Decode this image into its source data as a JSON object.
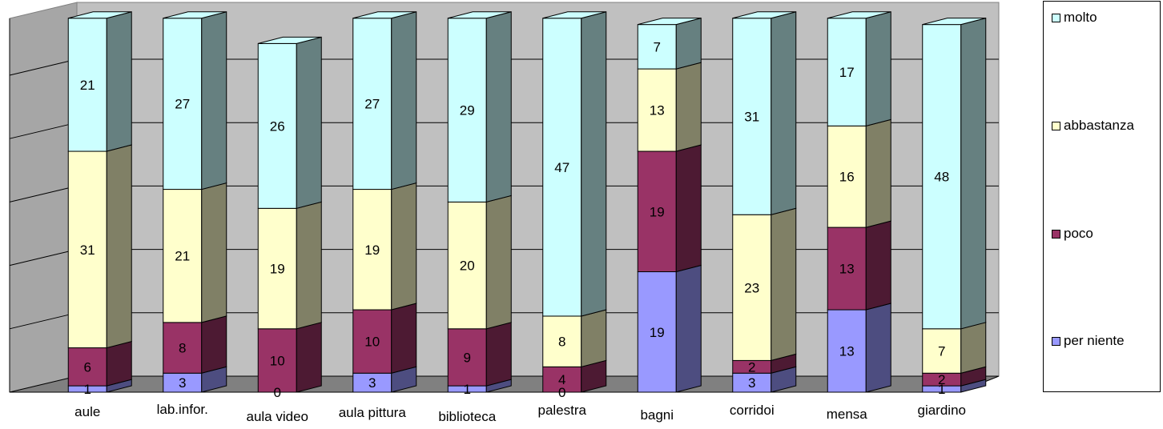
{
  "chart_data": {
    "type": "bar",
    "stacked": true,
    "three_d": true,
    "categories": [
      "aule",
      "lab.infor.",
      "aula video",
      "aula pittura",
      "biblioteca",
      "palestra",
      "bagni",
      "corridoi",
      "mensa",
      "giardino"
    ],
    "series": [
      {
        "name": "per niente",
        "color": "#9999ff",
        "values": [
          1,
          3,
          0,
          3,
          1,
          0,
          19,
          3,
          13,
          1
        ]
      },
      {
        "name": "poco",
        "color": "#993366",
        "values": [
          6,
          8,
          10,
          10,
          9,
          4,
          19,
          2,
          13,
          2
        ]
      },
      {
        "name": "abbastanza",
        "color": "#ffffcc",
        "values": [
          31,
          21,
          19,
          19,
          20,
          8,
          13,
          23,
          16,
          7
        ]
      },
      {
        "name": "molto",
        "color": "#ccffff",
        "values": [
          21,
          27,
          26,
          27,
          29,
          47,
          7,
          31,
          17,
          48
        ]
      }
    ],
    "ylim": [
      0,
      59
    ],
    "grid": true,
    "legend_position": "right"
  }
}
